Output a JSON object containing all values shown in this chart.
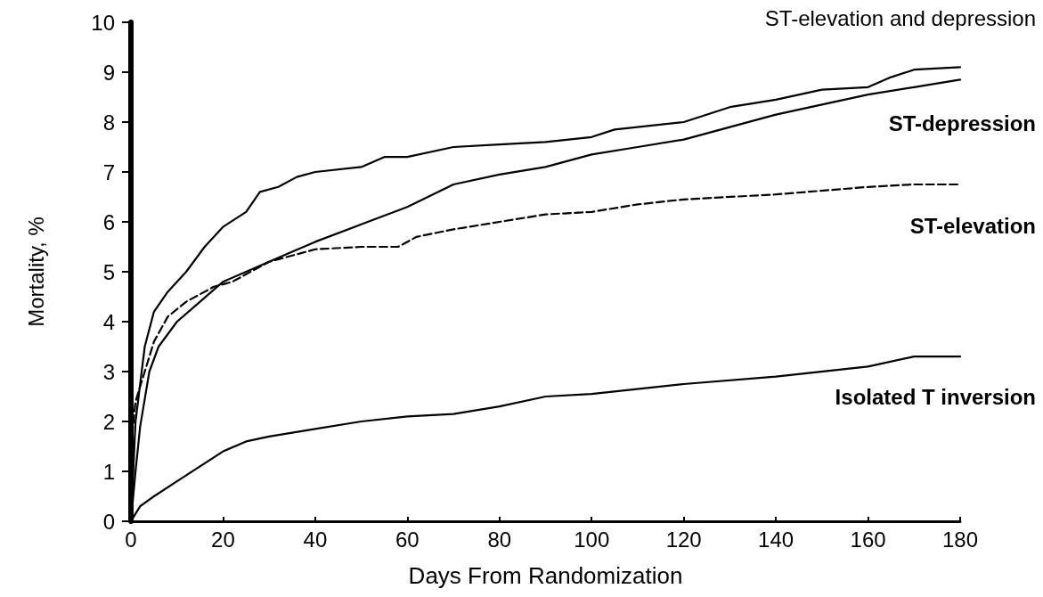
{
  "chart_data": {
    "type": "line",
    "xlabel": "Days From Randomization",
    "ylabel": "Mortality, %",
    "xlim": [
      0,
      180
    ],
    "xticks": [
      0,
      20,
      40,
      60,
      80,
      100,
      120,
      140,
      160,
      180
    ],
    "ylim": [
      0,
      10
    ],
    "yticks": [
      0,
      1,
      2,
      3,
      4,
      5,
      6,
      7,
      8,
      9,
      10
    ],
    "grid": false,
    "legend": false,
    "marker": "none",
    "series": [
      {
        "name": "ST-elevation and depression",
        "color": "#000000",
        "line_style": "solid",
        "x": [
          0,
          1,
          3,
          5,
          8,
          12,
          16,
          20,
          25,
          28,
          32,
          36,
          40,
          50,
          55,
          60,
          70,
          80,
          90,
          100,
          105,
          120,
          130,
          140,
          150,
          160,
          165,
          170,
          180
        ],
        "values": [
          0,
          2.0,
          3.5,
          4.2,
          4.6,
          5.0,
          5.5,
          5.9,
          6.2,
          6.6,
          6.7,
          6.9,
          7.0,
          7.1,
          7.3,
          7.3,
          7.5,
          7.55,
          7.6,
          7.7,
          7.85,
          8.0,
          8.3,
          8.45,
          8.65,
          8.7,
          8.9,
          9.05,
          9.1
        ]
      },
      {
        "name": "ST-depression",
        "color": "#000000",
        "line_style": "solid",
        "x": [
          0,
          1,
          2,
          4,
          6,
          10,
          15,
          20,
          25,
          30,
          35,
          40,
          50,
          60,
          70,
          80,
          90,
          100,
          110,
          120,
          130,
          140,
          150,
          160,
          170,
          180
        ],
        "values": [
          0,
          1.0,
          1.9,
          3.0,
          3.5,
          4.0,
          4.4,
          4.8,
          5.0,
          5.2,
          5.4,
          5.6,
          5.95,
          6.3,
          6.75,
          6.95,
          7.1,
          7.35,
          7.5,
          7.65,
          7.9,
          8.15,
          8.35,
          8.55,
          8.7,
          8.85
        ]
      },
      {
        "name": "ST-elevation",
        "color": "#000000",
        "line_style": "dashed",
        "x": [
          0,
          1,
          3,
          5,
          8,
          12,
          18,
          22,
          30,
          40,
          50,
          58,
          62,
          70,
          80,
          90,
          100,
          110,
          120,
          140,
          160,
          170,
          180
        ],
        "values": [
          1.5,
          2.4,
          3.0,
          3.6,
          4.1,
          4.4,
          4.7,
          4.8,
          5.2,
          5.45,
          5.5,
          5.5,
          5.7,
          5.85,
          6.0,
          6.15,
          6.2,
          6.35,
          6.45,
          6.55,
          6.7,
          6.75,
          6.75
        ]
      },
      {
        "name": "Isolated T inversion",
        "color": "#000000",
        "line_style": "solid",
        "x": [
          0,
          2,
          5,
          10,
          15,
          20,
          25,
          30,
          40,
          50,
          60,
          70,
          80,
          90,
          100,
          120,
          140,
          160,
          170,
          180
        ],
        "values": [
          0,
          0.3,
          0.5,
          0.8,
          1.1,
          1.4,
          1.6,
          1.7,
          1.85,
          2.0,
          2.1,
          2.15,
          2.3,
          2.5,
          2.55,
          2.75,
          2.9,
          3.1,
          3.3,
          3.3
        ]
      }
    ]
  }
}
